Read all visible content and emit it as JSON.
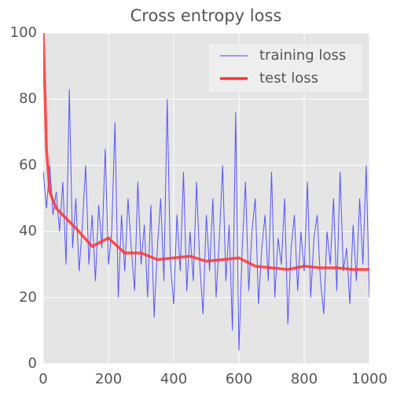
{
  "chart_data": {
    "type": "line",
    "title": "Cross entropy loss",
    "xlim": [
      0,
      1000
    ],
    "ylim": [
      0,
      100
    ],
    "xticks": [
      0,
      200,
      400,
      600,
      800,
      1000
    ],
    "yticks": [
      0,
      20,
      40,
      60,
      80,
      100
    ],
    "grid": true,
    "legend": "upper right",
    "series": [
      {
        "name": "training loss",
        "color": "#4444ff",
        "width": 1,
        "x": [
          0,
          10,
          20,
          30,
          40,
          50,
          60,
          70,
          80,
          90,
          100,
          110,
          120,
          130,
          140,
          150,
          160,
          170,
          180,
          190,
          200,
          210,
          220,
          230,
          240,
          250,
          260,
          270,
          280,
          290,
          300,
          310,
          320,
          330,
          340,
          350,
          360,
          370,
          380,
          390,
          400,
          410,
          420,
          430,
          440,
          450,
          460,
          470,
          480,
          490,
          500,
          510,
          520,
          530,
          540,
          550,
          560,
          570,
          580,
          590,
          600,
          610,
          620,
          630,
          640,
          650,
          660,
          670,
          680,
          690,
          700,
          710,
          720,
          730,
          740,
          750,
          760,
          770,
          780,
          790,
          800,
          810,
          820,
          830,
          840,
          850,
          860,
          870,
          880,
          890,
          900,
          910,
          920,
          930,
          940,
          950,
          960,
          970,
          980,
          990,
          1000
        ],
        "values": [
          58,
          47,
          60,
          45,
          52,
          40,
          55,
          30,
          83,
          35,
          50,
          28,
          42,
          60,
          30,
          45,
          25,
          48,
          35,
          65,
          30,
          40,
          73,
          20,
          45,
          28,
          50,
          35,
          22,
          55,
          30,
          42,
          20,
          48,
          14,
          35,
          50,
          25,
          80,
          30,
          18,
          45,
          28,
          58,
          22,
          40,
          25,
          55,
          30,
          15,
          45,
          28,
          50,
          20,
          38,
          60,
          25,
          42,
          10,
          76,
          4,
          35,
          55,
          22,
          40,
          50,
          18,
          35,
          45,
          25,
          58,
          20,
          38,
          30,
          50,
          12,
          35,
          45,
          22,
          40,
          28,
          55,
          20,
          38,
          45,
          25,
          15,
          40,
          30,
          50,
          22,
          58,
          28,
          35,
          18,
          42,
          25,
          50,
          30,
          60,
          20
        ]
      },
      {
        "name": "test loss",
        "color": "#ff3333",
        "width": 3.5,
        "x": [
          0,
          10,
          20,
          40,
          50,
          100,
          150,
          200,
          250,
          300,
          350,
          400,
          450,
          500,
          550,
          600,
          650,
          700,
          750,
          800,
          850,
          900,
          950,
          1000
        ],
        "values": [
          100,
          65,
          52,
          47,
          46,
          41,
          35.5,
          38,
          33.5,
          33.5,
          31.5,
          32,
          32.5,
          31,
          31.5,
          32,
          29.5,
          29,
          28.5,
          29.5,
          29,
          29,
          28.5,
          28.5
        ]
      }
    ]
  }
}
